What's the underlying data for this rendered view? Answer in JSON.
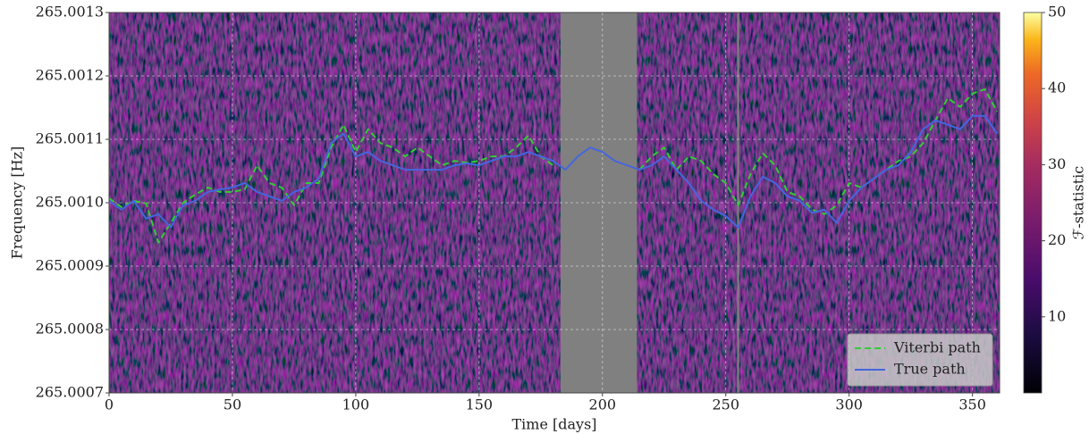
{
  "chart_data": {
    "type": "line",
    "xlabel": "Time [days]",
    "ylabel": "Frequency [Hz]",
    "colorbar_label": "ℱ-statistic",
    "xlim": [
      0,
      361
    ],
    "ylim": [
      265.0007,
      265.0013
    ],
    "xticks": [
      0,
      50,
      100,
      150,
      200,
      250,
      300,
      350
    ],
    "yticks": [
      265.0007,
      265.0008,
      265.0009,
      {
        "value": 265.001,
        "label": "265.0010"
      },
      265.0011,
      265.0012,
      265.0013
    ],
    "clim": [
      0,
      50
    ],
    "cticks": [
      10,
      20,
      30,
      40,
      50
    ],
    "grid": true,
    "legend": "lower right",
    "masked_spans": [
      [
        183,
        214
      ],
      [
        254.6,
        255.4
      ]
    ],
    "masked_color": "#808080",
    "x": [
      0,
      5,
      10,
      15,
      20,
      25,
      30,
      35,
      40,
      45,
      50,
      55,
      60,
      65,
      70,
      75,
      80,
      85,
      90,
      95,
      100,
      105,
      110,
      115,
      120,
      125,
      130,
      135,
      140,
      145,
      150,
      155,
      160,
      165,
      170,
      175,
      180,
      185,
      190,
      195,
      200,
      205,
      210,
      215,
      220,
      225,
      230,
      235,
      240,
      245,
      250,
      255,
      260,
      265,
      270,
      275,
      280,
      285,
      290,
      295,
      300,
      305,
      310,
      315,
      320,
      325,
      330,
      335,
      340,
      345,
      350,
      355,
      360
    ],
    "series": [
      {
        "name": "Viterbi path",
        "color": "#33cc33",
        "dashed": true,
        "values": [
          265.001007,
          265.000993,
          265.001003,
          265.000999,
          265.000937,
          265.000968,
          265.001,
          265.001013,
          265.001024,
          265.001017,
          265.001017,
          265.001021,
          265.001059,
          265.001031,
          265.001024,
          265.000996,
          265.001031,
          265.001031,
          265.001087,
          265.001123,
          265.00108,
          265.001116,
          265.001094,
          265.001087,
          265.001073,
          265.001087,
          265.001073,
          265.001059,
          265.001066,
          265.001063,
          265.001066,
          265.001073,
          265.001073,
          265.001087,
          265.001106,
          265.001073,
          265.001059,
          null,
          null,
          null,
          null,
          null,
          null,
          265.001052,
          265.001073,
          265.001087,
          265.001052,
          265.001073,
          265.001066,
          265.001045,
          265.001031,
          265.000996,
          265.001045,
          265.001078,
          265.001059,
          265.001017,
          265.00101,
          265.000989,
          265.000982,
          265.000996,
          265.001031,
          265.001024,
          265.001038,
          265.001052,
          265.001066,
          265.001073,
          265.001094,
          265.00113,
          265.001165,
          265.001151,
          265.001172,
          265.001179,
          265.001144
        ]
      },
      {
        "name": "True path",
        "color": "#4466dd",
        "dashed": false,
        "values": [
          265.001003,
          265.000989,
          265.001003,
          265.000975,
          265.000982,
          265.000961,
          265.000996,
          265.001003,
          265.001017,
          265.001021,
          265.001024,
          265.001031,
          265.001017,
          265.00101,
          265.001003,
          265.001017,
          265.001024,
          265.001038,
          265.001094,
          265.001109,
          265.001073,
          265.00108,
          265.001066,
          265.001059,
          265.001052,
          265.001052,
          265.001052,
          265.001052,
          265.001059,
          265.001062,
          265.001059,
          265.001066,
          265.001073,
          265.001073,
          265.00108,
          265.001073,
          265.001066,
          265.001052,
          265.001073,
          265.001087,
          265.00108,
          265.001066,
          265.001059,
          265.001052,
          265.001059,
          265.001073,
          265.001052,
          265.001031,
          265.001003,
          265.000989,
          265.000979,
          265.000961,
          265.00101,
          265.001041,
          265.001031,
          265.00101,
          265.001003,
          265.000984,
          265.000989,
          265.000968,
          265.001003,
          265.001024,
          265.001038,
          265.001052,
          265.001059,
          265.00108,
          265.001116,
          265.00113,
          265.001123,
          265.001116,
          265.001137,
          265.001137,
          265.001109
        ]
      }
    ]
  }
}
